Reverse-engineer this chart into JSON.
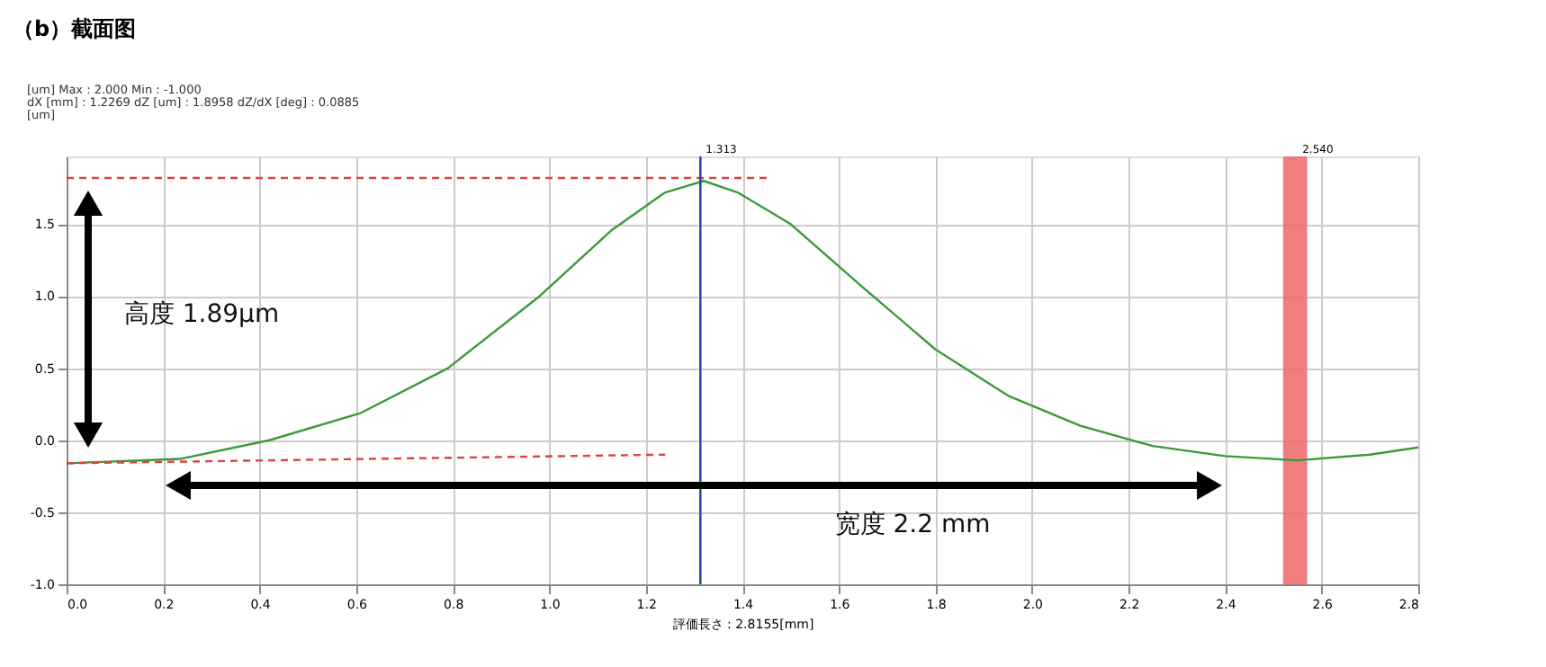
{
  "chart_data": {
    "type": "line",
    "title": "（b）截面图",
    "xlabel": "評価長さ : 2.8155[mm]",
    "annotations": [
      "[um] Max : 2.000  Min : -1.000",
      "dX [mm] : 1.2269  dZ [um] : 1.8958  dZ/dX [deg] : 0.0885",
      "[um]",
      "高度 1.89μm",
      "宽度 2.2 mm"
    ],
    "series": [
      {
        "color": "#3a9a3a",
        "line_style": "solid",
        "x": [
          0,
          0.235,
          0.42,
          0.61,
          0.79,
          0.98,
          1.13,
          1.24,
          1.32,
          1.39,
          1.5,
          1.65,
          1.8,
          1.95,
          2.1,
          2.25,
          2.4,
          2.55,
          2.7,
          2.8
        ],
        "values": [
          -0.16,
          -0.13,
          0.0,
          0.19,
          0.5,
          1.0,
          1.46,
          1.72,
          1.8,
          1.72,
          1.5,
          1.06,
          0.63,
          0.31,
          0.1,
          -0.04,
          -0.11,
          -0.14,
          -0.1,
          -0.05
        ]
      },
      {
        "color": "#e04040",
        "line_style": "dashed",
        "x": [
          0,
          1.45
        ],
        "values": [
          1.82,
          1.82
        ]
      },
      {
        "color": "#e04040",
        "line_style": "dashed",
        "x": [
          0,
          1.24
        ],
        "values": [
          -0.16,
          -0.1
        ]
      }
    ],
    "ref_lines": [
      {
        "axis": "x",
        "value": 1.313,
        "label": "1.313",
        "color": "#2040a0"
      }
    ],
    "bands": [
      {
        "axis": "x",
        "from": 2.52,
        "to": 2.57,
        "label": "2.540",
        "color": "#f07070"
      }
    ],
    "xlim": [
      0,
      2.8
    ],
    "xticks": [
      {
        "value": 0,
        "label": "0.0"
      },
      0.2,
      0.4,
      0.6,
      0.8,
      {
        "value": 1,
        "label": "1.0"
      },
      1.2,
      1.4,
      1.6,
      1.8,
      {
        "value": 2,
        "label": "2.0"
      },
      2.2,
      2.4,
      2.6,
      2.8
    ],
    "ylim": [
      -1.0,
      1.97
    ],
    "yticks": [
      {
        "value": -1,
        "label": "-1.0"
      },
      -0.5,
      {
        "value": 0,
        "label": "0.0"
      },
      0.5,
      {
        "value": 1,
        "label": "1.0"
      },
      1.5
    ],
    "grid": true,
    "marker": "none"
  }
}
